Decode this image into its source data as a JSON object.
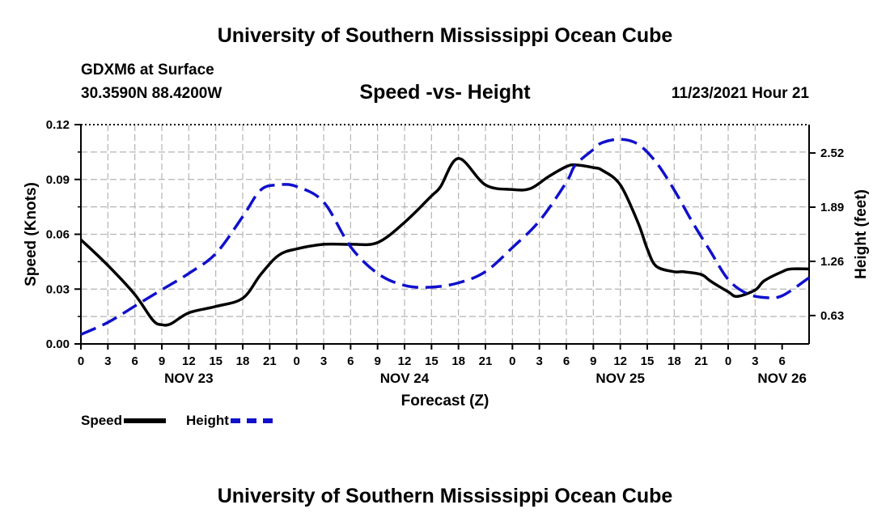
{
  "header": {
    "title": "University of Southern Mississippi Ocean Cube",
    "station": "GDXM6 at Surface",
    "coords": "30.3590N  88.4200W",
    "subtitle": "Speed -vs- Height",
    "datetime": "11/23/2021 Hour 21"
  },
  "footer": {
    "title": "University of Southern Mississippi Ocean Cube"
  },
  "legend": [
    {
      "label": "Speed",
      "color": "#000000",
      "style": "solid"
    },
    {
      "label": "Height",
      "color": "#1010cc",
      "style": "dashed"
    }
  ],
  "chart_data": {
    "type": "line",
    "title": "Speed -vs- Height",
    "xlabel": "Forecast (Z)",
    "ylabel": "Speed (Knots)",
    "y2label": "Height (feet)",
    "x_range": [
      0,
      81
    ],
    "x_tick_step_hours": 3,
    "x_tick_labels": [
      "0",
      "3",
      "6",
      "9",
      "12",
      "15",
      "18",
      "21",
      "0",
      "3",
      "6",
      "9",
      "12",
      "15",
      "18",
      "21",
      "0",
      "3",
      "6",
      "9",
      "12",
      "15",
      "18",
      "21",
      "0",
      "3",
      "6"
    ],
    "date_labels": [
      {
        "label": "NOV 23",
        "hour": 12
      },
      {
        "label": "NOV 24",
        "hour": 36
      },
      {
        "label": "NOV 25",
        "hour": 60
      },
      {
        "label": "NOV 26",
        "hour": 78
      }
    ],
    "ylim": [
      0,
      0.12
    ],
    "y_ticks": [
      0,
      0.03,
      0.06,
      0.09,
      0.12
    ],
    "y_tick_labels": [
      "0.00",
      "0.03",
      "0.06",
      "0.09",
      "0.12"
    ],
    "y2lim": [
      0.3,
      2.85
    ],
    "y2_ticks": [
      0.63,
      1.26,
      1.89,
      2.52
    ],
    "y2_tick_labels": [
      "0.63",
      "1.26",
      "1.89",
      "2.52"
    ],
    "grid": true,
    "series": [
      {
        "name": "Speed",
        "axis": "left",
        "color": "#000000",
        "style": "solid",
        "x": [
          0,
          3,
          6,
          8,
          9,
          10,
          12,
          15,
          18,
          20,
          22,
          24,
          27,
          30,
          33,
          36,
          39,
          40,
          42,
          45,
          48,
          50,
          52,
          54,
          55,
          57,
          58,
          60,
          62,
          63,
          64,
          66,
          67,
          69,
          70,
          72,
          73,
          75,
          76,
          78,
          79,
          81
        ],
        "y": [
          0.057,
          0.043,
          0.027,
          0.013,
          0.0105,
          0.011,
          0.017,
          0.0205,
          0.025,
          0.038,
          0.0485,
          0.052,
          0.0545,
          0.0545,
          0.0555,
          0.0665,
          0.081,
          0.086,
          0.1015,
          0.087,
          0.0845,
          0.085,
          0.0915,
          0.097,
          0.098,
          0.0965,
          0.095,
          0.087,
          0.066,
          0.052,
          0.0425,
          0.0395,
          0.0395,
          0.038,
          0.0345,
          0.0285,
          0.026,
          0.0295,
          0.0345,
          0.0395,
          0.041,
          0.041
        ]
      },
      {
        "name": "Height",
        "axis": "right",
        "color": "#1010cc",
        "style": "dashed",
        "x": [
          0,
          3,
          6,
          9,
          12,
          15,
          18,
          20,
          22,
          24,
          27,
          30,
          33,
          36,
          39,
          42,
          45,
          48,
          51,
          54,
          55,
          57,
          58,
          60,
          62,
          64,
          66,
          68,
          70,
          72,
          74,
          76,
          78,
          81
        ],
        "y": [
          0.41,
          0.55,
          0.74,
          0.93,
          1.12,
          1.35,
          1.78,
          2.09,
          2.15,
          2.13,
          1.95,
          1.43,
          1.12,
          0.98,
          0.96,
          1.01,
          1.14,
          1.42,
          1.73,
          2.18,
          2.38,
          2.56,
          2.64,
          2.68,
          2.62,
          2.41,
          2.09,
          1.72,
          1.38,
          1.05,
          0.89,
          0.84,
          0.86,
          1.07
        ]
      }
    ]
  }
}
